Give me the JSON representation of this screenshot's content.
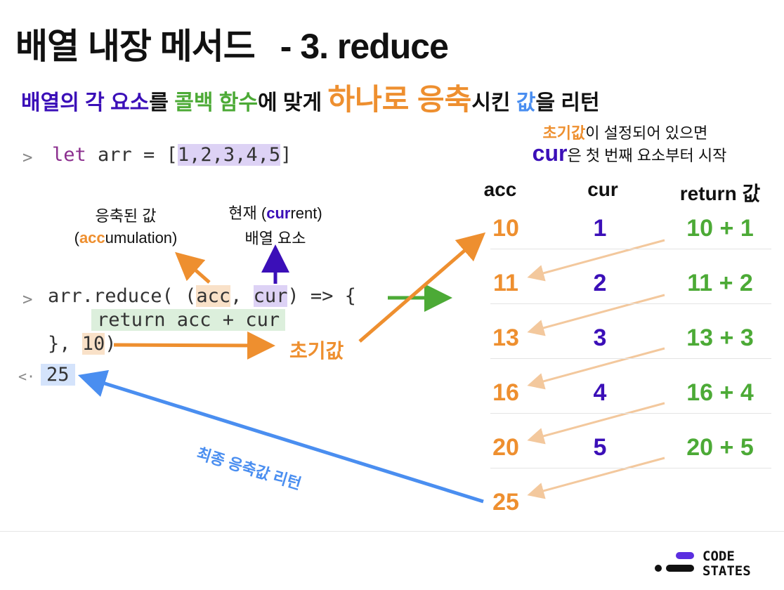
{
  "title": {
    "main": "배열 내장 메서드",
    "sub": "- 3. reduce"
  },
  "subtitle": [
    {
      "text": "배열의 각 요소",
      "color": "#3b0fb8",
      "big": false
    },
    {
      "text": "를 ",
      "color": "#111111",
      "big": false
    },
    {
      "text": "콜백 함수",
      "color": "#4caa36",
      "big": false
    },
    {
      "text": "에 맞게 ",
      "color": "#111111",
      "big": false
    },
    {
      "text": "하나로 응축",
      "color": "#ee8f2f",
      "big": true
    },
    {
      "text": "시킨 ",
      "color": "#111111",
      "big": false
    },
    {
      "text": "값",
      "color": "#4a8ef0",
      "big": false
    },
    {
      "text": "을 리턴",
      "color": "#111111",
      "big": false
    }
  ],
  "code": {
    "prompt_in": ">",
    "prompt_out": "<·",
    "line1": {
      "kw": "let",
      "rest": " arr = [",
      "values": "1,2,3,4,5",
      "close": "]"
    },
    "line2": {
      "pre": "arr.reduce( (",
      "acc": "acc",
      "comma": ", ",
      "cur": "cur",
      "post": ") => {"
    },
    "line3": "return acc + cur",
    "line4": {
      "pre": "}, ",
      "init": "10",
      "post": ")"
    },
    "result": "25"
  },
  "notes": {
    "acc_line1": "응축된 값",
    "acc_line2_pre": "(",
    "acc_line2_hl": "acc",
    "acc_line2_post": "umulation)",
    "cur_line1_pre": "현재 (",
    "cur_line1_hl": "cur",
    "cur_line1_post": "rent)",
    "cur_line2": "배열 요소",
    "init_label": "초기값",
    "final_label": "최종 응축값 리턴",
    "top_line1_hl": "초기값",
    "top_line1_rest": "이 설정되어 있으면",
    "top_line2_hl": "cur",
    "top_line2_rest": "은 첫 번째 요소부터 시작"
  },
  "table": {
    "headers": [
      "acc",
      "cur",
      "return 값"
    ],
    "rows": [
      {
        "acc": "10",
        "cur": "1",
        "ret": "10 + 1"
      },
      {
        "acc": "11",
        "cur": "2",
        "ret": "11 + 2"
      },
      {
        "acc": "13",
        "cur": "3",
        "ret": "13 + 3"
      },
      {
        "acc": "16",
        "cur": "4",
        "ret": "16 + 4"
      },
      {
        "acc": "20",
        "cur": "5",
        "ret": "20 + 5"
      }
    ],
    "final": "25"
  },
  "logo": {
    "line1": "CODE",
    "line2": "STATES"
  },
  "colors": {
    "orange": "#ee8f2f",
    "purple": "#3b0fb8",
    "green": "#4caa36",
    "blue": "#4a8ef0"
  }
}
